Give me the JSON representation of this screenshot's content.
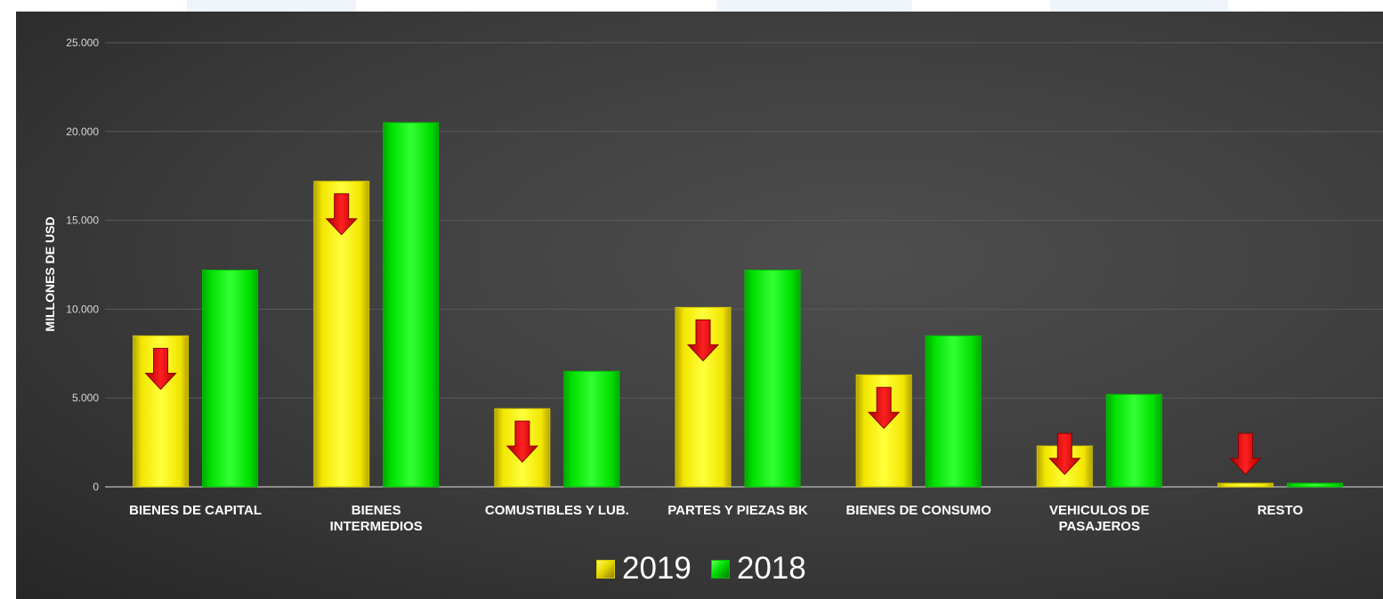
{
  "chart_data": {
    "type": "bar",
    "ylabel": "MILLONES DE USD",
    "ylim": [
      0,
      25000
    ],
    "yticks": [
      0,
      5000,
      10000,
      15000,
      20000,
      25000
    ],
    "ytick_labels": [
      "0",
      "5.000",
      "10.000",
      "15.000",
      "20.000",
      "25.000"
    ],
    "categories": [
      [
        "BIENES DE CAPITAL"
      ],
      [
        "BIENES",
        "INTERMEDIOS"
      ],
      [
        "COMUSTIBLES Y LUB."
      ],
      [
        "PARTES Y PIEZAS BK"
      ],
      [
        "BIENES DE CONSUMO"
      ],
      [
        "VEHICULOS DE",
        "PASAJEROS"
      ],
      [
        "RESTO"
      ]
    ],
    "series": [
      {
        "name": "2019",
        "color": "#ffff00",
        "values": [
          8500,
          17200,
          4400,
          10100,
          6300,
          2300,
          200
        ]
      },
      {
        "name": "2018",
        "color": "#00ee00",
        "values": [
          12200,
          20500,
          6500,
          12200,
          8500,
          5200,
          200
        ]
      }
    ],
    "decrease_markers": {
      "series": "2019",
      "icon": "down-arrow-icon",
      "color": "#ff0000"
    },
    "grid": true,
    "legend_position": "bottom"
  }
}
